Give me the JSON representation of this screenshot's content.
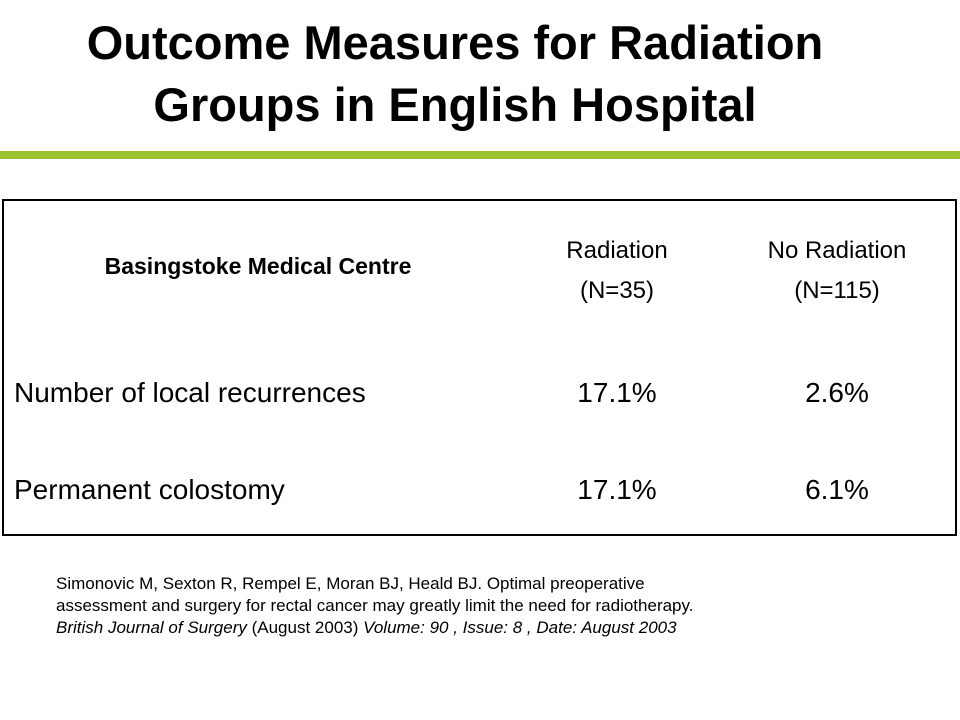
{
  "title": {
    "line1": "Outcome Measures for Radiation",
    "line2": "Groups in English Hospital"
  },
  "accent_color": "#9dc32f",
  "table": {
    "header": {
      "center_name": "Basingstoke Medical Centre",
      "columns": [
        {
          "line1": "Radiation",
          "line2": "(N=35)"
        },
        {
          "line1": "No Radiation",
          "line2": "(N=115)"
        }
      ]
    },
    "rows": [
      {
        "label": "Number of local recurrences",
        "values": [
          "17.1%",
          "2.6%"
        ]
      },
      {
        "label": "Permanent colostomy",
        "values": [
          "17.1%",
          "6.1%"
        ]
      }
    ]
  },
  "citation": {
    "line1": "Simonovic M, Sexton R, Rempel E, Moran BJ, Heald BJ. Optimal preoperative",
    "line2": "assessment and surgery for rectal cancer may greatly limit the need for radiotherapy.",
    "journal": "British Journal of Surgery",
    "date_plain": " (August 2003) ",
    "details": "Volume: 90 , Issue: 8 , Date: August 2003"
  }
}
